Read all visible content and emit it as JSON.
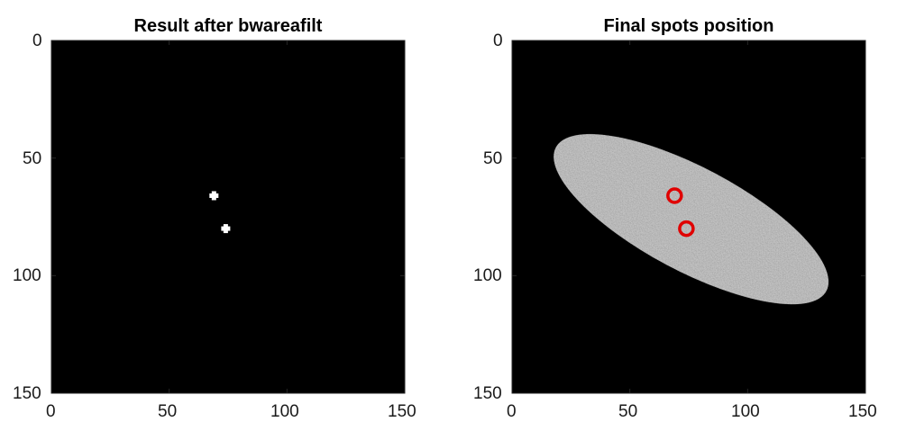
{
  "chart_data": [
    {
      "type": "image",
      "title": "Result after bwareafilt",
      "xlim": [
        0,
        150
      ],
      "ylim": [
        150,
        0
      ],
      "xticks": [
        "0",
        "50",
        "100",
        "150"
      ],
      "yticks": [
        "0",
        "50",
        "100",
        "150"
      ],
      "image": "binary mask, black background",
      "spots": [
        {
          "x": 69,
          "y": 66
        },
        {
          "x": 74,
          "y": 80
        }
      ]
    },
    {
      "type": "image",
      "title": "Final spots position",
      "xlim": [
        0,
        150
      ],
      "ylim": [
        150,
        0
      ],
      "xticks": [
        "0",
        "50",
        "100",
        "150"
      ],
      "yticks": [
        "0",
        "50",
        "100",
        "150"
      ],
      "image": "noisy gray ellipse on black background",
      "ellipse": {
        "cx": 76,
        "cy": 76,
        "rx": 65,
        "ry": 22,
        "angle_deg": 28
      },
      "markers": [
        {
          "x": 69,
          "y": 66,
          "color": "#e00000"
        },
        {
          "x": 74,
          "y": 80,
          "color": "#e00000"
        }
      ]
    }
  ]
}
